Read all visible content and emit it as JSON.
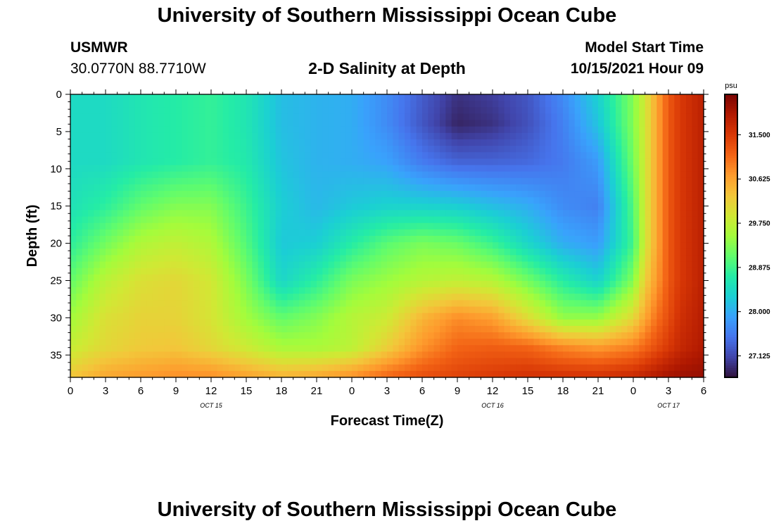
{
  "header": {
    "title": "University of Southern Mississippi Ocean Cube",
    "station_id": "USMWR",
    "coordinates": "30.0770N  88.7710W",
    "plot_subtitle": "2-D Salinity at Depth",
    "model_label": "Model Start Time",
    "model_time": "10/15/2021 Hour 09",
    "second_title": "University of Southern Mississippi Ocean Cube"
  },
  "chart_data": {
    "type": "heatmap",
    "title": "2-D Salinity at Depth",
    "xlabel": "Forecast Time(Z)",
    "ylabel": "Depth (ft)",
    "x_tick_labels": [
      "0",
      "3",
      "6",
      "9",
      "12",
      "15",
      "18",
      "21",
      "0",
      "3",
      "6",
      "9",
      "12",
      "15",
      "18",
      "21",
      "0",
      "3",
      "6"
    ],
    "x_date_labels": [
      {
        "label": "OCT 15",
        "hour": 12
      },
      {
        "label": "OCT 16",
        "hour": 36
      },
      {
        "label": "OCT 17",
        "hour": 51
      }
    ],
    "x_range_hours": [
      0,
      54
    ],
    "y_ticks": [
      0,
      5,
      10,
      15,
      20,
      25,
      30,
      35
    ],
    "y_range": [
      0,
      38
    ],
    "y_inverted": true,
    "colorbar": {
      "unit": "psu",
      "range": [
        26.7,
        32.3
      ],
      "tick_values": [
        27.125,
        28.0,
        28.875,
        29.75,
        30.625,
        31.5
      ],
      "tick_labels": [
        "27.125",
        "28.000",
        "28.875",
        "29.750",
        "30.625",
        "31.500"
      ],
      "colors": [
        "#30123b",
        "#4145ab",
        "#4675ed",
        "#39a2fc",
        "#1bcfd4",
        "#24eca6",
        "#61fc6c",
        "#a4fc3b",
        "#d1e834",
        "#f3c63a",
        "#fe9b2d",
        "#f36315",
        "#d93806",
        "#b11901",
        "#7a0403"
      ]
    },
    "field_description": "salinity (psu) vs forecast hour and depth",
    "anchor_depths": [
      0,
      4,
      9,
      15,
      20,
      25,
      30,
      34,
      38
    ],
    "anchor_hours": [
      0,
      3,
      6,
      9,
      12,
      15,
      18,
      21,
      24,
      27,
      30,
      33,
      36,
      39,
      42,
      45,
      48,
      49,
      50,
      51,
      52,
      54
    ],
    "salinity_grid": [
      [
        28.45,
        28.45,
        28.6,
        28.7,
        28.8,
        28.6,
        28.15,
        28.05,
        28.0,
        27.7,
        27.3,
        26.95,
        27.05,
        27.25,
        27.7,
        28.35,
        29.3,
        29.9,
        30.6,
        31.2,
        31.5,
        31.8
      ],
      [
        28.45,
        28.45,
        28.6,
        28.7,
        28.8,
        28.6,
        28.15,
        28.05,
        28.0,
        27.7,
        27.25,
        26.85,
        26.95,
        27.2,
        27.6,
        28.2,
        29.3,
        29.9,
        30.6,
        31.2,
        31.5,
        31.8
      ],
      [
        28.45,
        28.45,
        28.6,
        28.7,
        28.8,
        28.65,
        28.2,
        28.05,
        28.0,
        27.9,
        27.55,
        27.35,
        27.35,
        27.4,
        27.55,
        27.85,
        29.2,
        29.9,
        30.6,
        31.2,
        31.5,
        31.8
      ],
      [
        28.55,
        28.75,
        29.1,
        29.3,
        29.3,
        28.85,
        28.3,
        28.1,
        28.25,
        28.35,
        28.35,
        28.3,
        28.15,
        28.0,
        27.7,
        27.6,
        29.0,
        29.9,
        30.6,
        31.2,
        31.5,
        31.8
      ],
      [
        28.75,
        29.2,
        29.6,
        29.75,
        29.6,
        29.0,
        28.25,
        28.3,
        28.7,
        29.05,
        29.25,
        29.15,
        28.85,
        28.4,
        28.0,
        27.85,
        28.9,
        29.9,
        30.6,
        31.2,
        31.5,
        31.8
      ],
      [
        29.1,
        29.7,
        30.0,
        30.1,
        29.9,
        29.25,
        28.4,
        28.75,
        29.25,
        29.45,
        29.65,
        29.75,
        29.65,
        29.2,
        28.7,
        28.35,
        29.3,
        30.2,
        30.7,
        31.2,
        31.5,
        31.8
      ],
      [
        29.5,
        30.0,
        30.15,
        30.15,
        29.95,
        29.5,
        29.1,
        29.3,
        29.65,
        29.85,
        30.45,
        30.8,
        30.65,
        30.05,
        29.4,
        29.4,
        30.1,
        30.6,
        31.0,
        31.3,
        31.6,
        31.85
      ],
      [
        29.8,
        30.1,
        30.25,
        30.3,
        30.1,
        29.85,
        29.55,
        29.55,
        29.7,
        30.2,
        30.75,
        31.1,
        31.15,
        31.1,
        30.85,
        30.7,
        30.9,
        31.1,
        31.3,
        31.5,
        31.7,
        31.9
      ],
      [
        30.3,
        30.6,
        30.7,
        30.8,
        30.8,
        30.65,
        30.5,
        30.6,
        30.8,
        31.1,
        31.3,
        31.4,
        31.5,
        31.6,
        31.6,
        31.6,
        31.7,
        31.8,
        31.9,
        32.0,
        32.05,
        32.1
      ]
    ]
  }
}
